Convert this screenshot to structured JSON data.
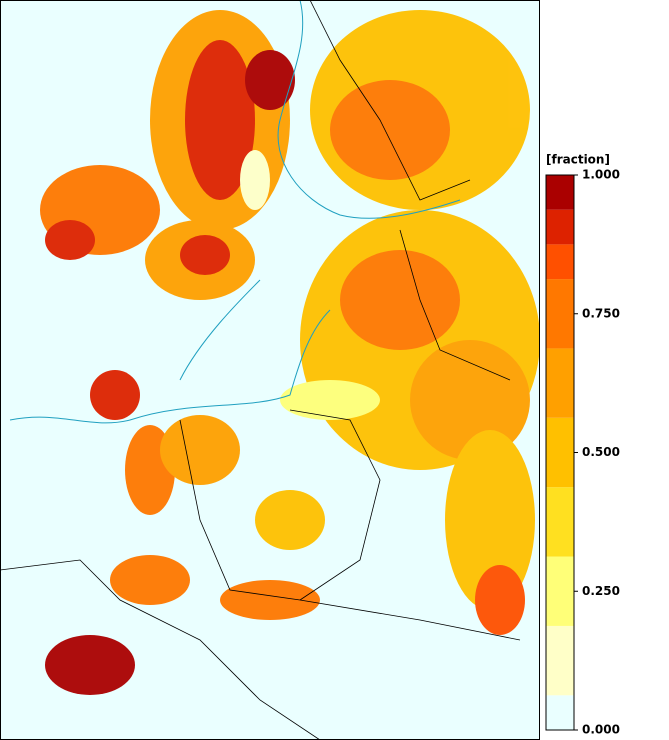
{
  "colorbar": {
    "label": "[fraction]",
    "levels": [
      0,
      0.0625,
      0.1875,
      0.3125,
      0.4375,
      0.5625,
      0.6875,
      0.8125,
      0.875,
      0.9375,
      1
    ],
    "colors": [
      "#eaffff",
      "#ffffc8",
      "#ffff78",
      "#ffe020",
      "#ffc000",
      "#ffa000",
      "#ff7800",
      "#ff5000",
      "#dd2200",
      "#aa0000"
    ],
    "ticks": [
      {
        "value": 0,
        "label": "0.000"
      },
      {
        "value": 0.25,
        "label": "0.250"
      },
      {
        "value": 0.5,
        "label": "0.500"
      },
      {
        "value": 0.75,
        "label": "0.750"
      },
      {
        "value": 1,
        "label": "1.000"
      }
    ]
  }
}
